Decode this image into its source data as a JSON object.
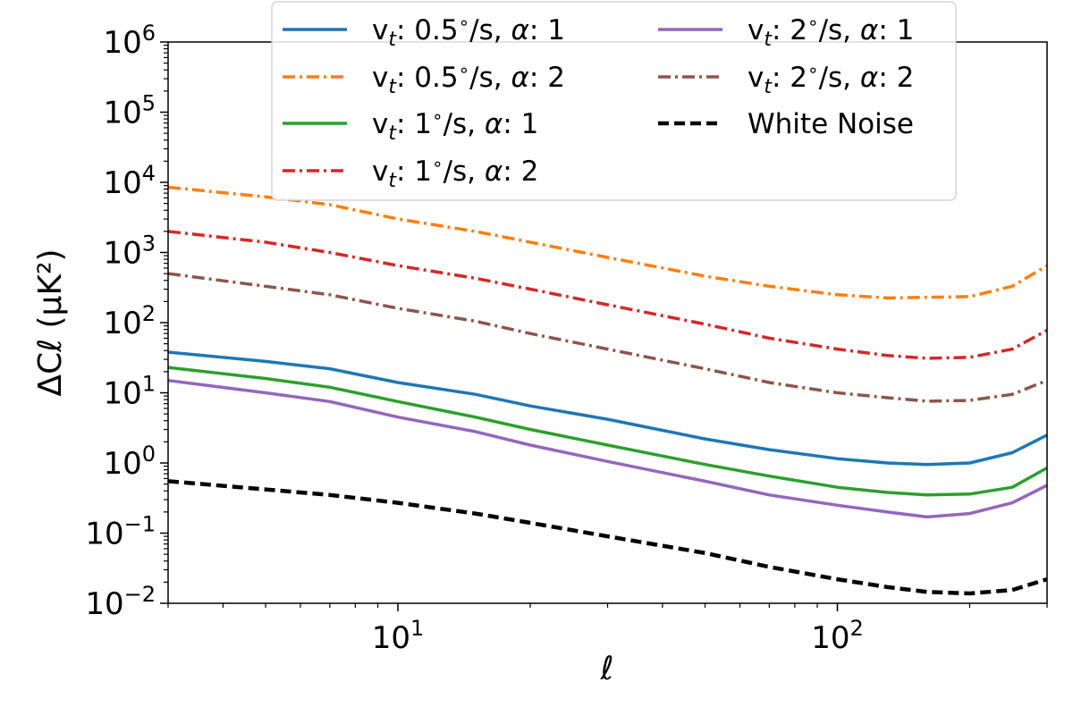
{
  "chart_data": {
    "type": "line",
    "xscale": "log",
    "yscale": "log",
    "xlim": [
      3,
      300
    ],
    "ylim": [
      0.01,
      1000000
    ],
    "xlabel": "ℓ",
    "ylabel": "ΔCℓ (μK²)",
    "grid": false,
    "legend_position": "top-center",
    "x_ticks": [
      {
        "value": 10,
        "base": "10",
        "exp": "1"
      },
      {
        "value": 100,
        "base": "10",
        "exp": "2"
      }
    ],
    "y_ticks": [
      {
        "value": 0.01,
        "base": "10",
        "exp": "−2"
      },
      {
        "value": 0.1,
        "base": "10",
        "exp": "−1"
      },
      {
        "value": 1,
        "base": "10",
        "exp": "0"
      },
      {
        "value": 10,
        "base": "10",
        "exp": "1"
      },
      {
        "value": 100,
        "base": "10",
        "exp": "2"
      },
      {
        "value": 1000,
        "base": "10",
        "exp": "3"
      },
      {
        "value": 10000,
        "base": "10",
        "exp": "4"
      },
      {
        "value": 100000,
        "base": "10",
        "exp": "5"
      },
      {
        "value": 1000000,
        "base": "10",
        "exp": "6"
      }
    ],
    "x": [
      3,
      5,
      7,
      10,
      15,
      20,
      30,
      50,
      70,
      100,
      130,
      160,
      200,
      250,
      300
    ],
    "series": [
      {
        "name": "v_t: 0.5°/s, α: 1",
        "vt": "0.5",
        "alpha": "1",
        "color": "#1f77b4",
        "style": "solid",
        "values": [
          38,
          28,
          22,
          14,
          9.5,
          6.5,
          4.2,
          2.2,
          1.55,
          1.15,
          1.0,
          0.95,
          1.0,
          1.4,
          2.5
        ]
      },
      {
        "name": "v_t: 0.5°/s, α: 2",
        "vt": "0.5",
        "alpha": "2",
        "color": "#ff7f0e",
        "style": "dashdot",
        "values": [
          8500,
          6200,
          4800,
          3000,
          2000,
          1400,
          850,
          460,
          330,
          250,
          225,
          230,
          235,
          330,
          650
        ]
      },
      {
        "name": "v_t: 1°/s, α: 1",
        "vt": "1",
        "alpha": "1",
        "color": "#2ca02c",
        "style": "solid",
        "values": [
          23,
          16,
          12,
          7.5,
          4.5,
          3.0,
          1.8,
          0.95,
          0.65,
          0.45,
          0.38,
          0.35,
          0.36,
          0.45,
          0.85
        ]
      },
      {
        "name": "v_t: 1°/s, α: 2",
        "vt": "1",
        "alpha": "2",
        "color": "#d62728",
        "style": "dashdot",
        "values": [
          2000,
          1400,
          1000,
          650,
          430,
          300,
          180,
          95,
          60,
          42,
          34,
          31,
          32,
          42,
          78
        ]
      },
      {
        "name": "v_t: 2°/s, α: 1",
        "vt": "2",
        "alpha": "1",
        "color": "#9467bd",
        "style": "solid",
        "values": [
          15,
          10,
          7.5,
          4.5,
          2.8,
          1.8,
          1.05,
          0.55,
          0.35,
          0.25,
          0.2,
          0.17,
          0.19,
          0.27,
          0.48
        ]
      },
      {
        "name": "v_t: 2°/s, α: 2",
        "vt": "2",
        "alpha": "2",
        "color": "#8c564b",
        "style": "dashdot",
        "values": [
          500,
          330,
          250,
          160,
          105,
          70,
          42,
          22,
          14,
          10,
          8.5,
          7.6,
          7.8,
          9.5,
          15
        ]
      },
      {
        "name": "White Noise",
        "color": "#000000",
        "style": "dashed",
        "values": [
          0.55,
          0.42,
          0.35,
          0.27,
          0.19,
          0.14,
          0.09,
          0.052,
          0.033,
          0.022,
          0.017,
          0.0145,
          0.0138,
          0.0155,
          0.022
        ]
      }
    ]
  }
}
